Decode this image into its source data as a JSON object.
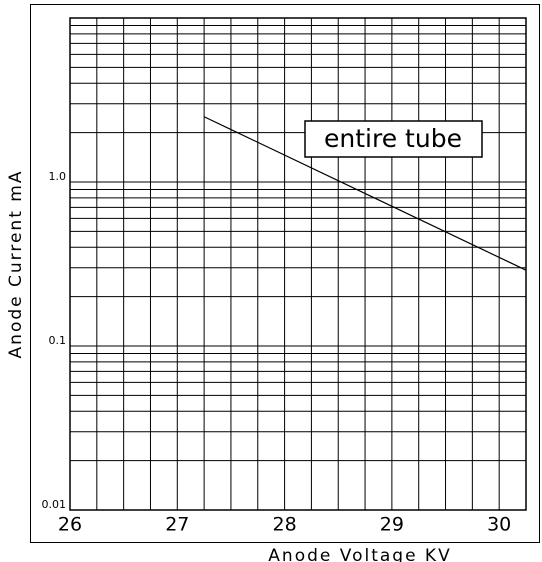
{
  "chart_data": {
    "type": "line",
    "xlabel": "Anode Voltage KV",
    "ylabel": "Anode Current mA",
    "annotation": "entire tube",
    "x": [
      27.25,
      30.25
    ],
    "series": [
      {
        "name": "entire tube",
        "color": "#000000",
        "values": [
          2.5,
          0.29
        ]
      }
    ],
    "xlim": [
      26,
      30.25
    ],
    "xticks": [
      26,
      27,
      28,
      29,
      30
    ],
    "xminor": [
      26.25,
      26.5,
      26.75,
      27.25,
      27.5,
      27.75,
      28.25,
      28.5,
      28.75,
      29.25,
      29.5,
      29.75,
      30.25
    ],
    "ylim": [
      0.01,
      10
    ],
    "yscale": "log",
    "yticks": [
      0.01,
      0.1,
      {
        "value": 1,
        "label": "1.0"
      }
    ],
    "yminor": [
      0.02,
      0.03,
      0.04,
      0.05,
      0.06,
      0.07,
      0.08,
      0.09,
      0.2,
      0.3,
      0.4,
      0.5,
      0.6,
      0.7,
      0.8,
      0.9,
      2,
      3,
      4,
      5,
      6,
      7,
      8,
      9,
      10
    ],
    "grid": true
  }
}
